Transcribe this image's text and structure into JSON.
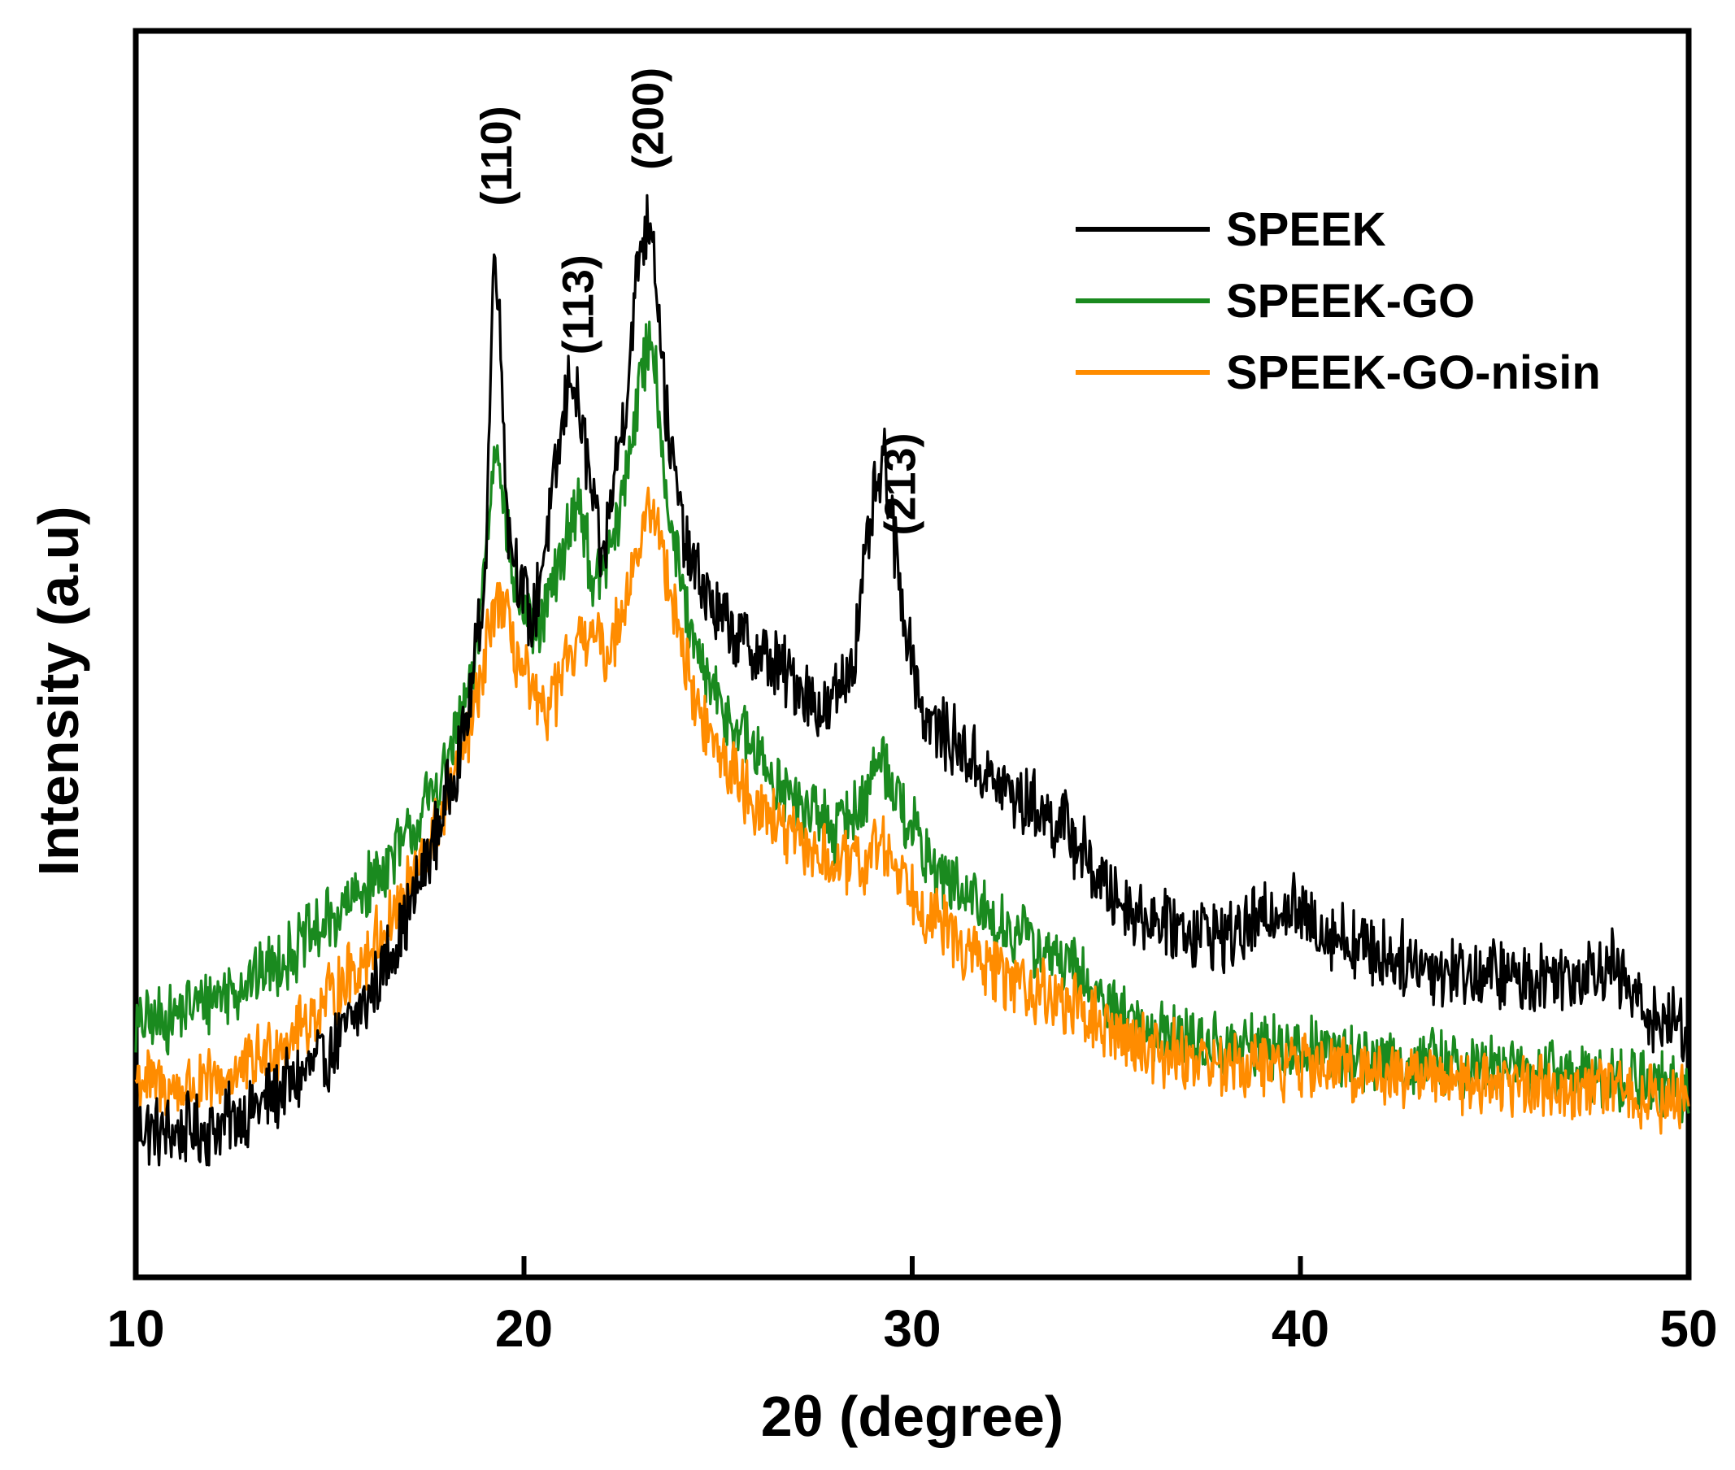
{
  "chart_data": {
    "type": "line",
    "title": "",
    "xlabel": "2θ (degree)",
    "ylabel": "Intensity (a.u)",
    "xlim": [
      10,
      50
    ],
    "ylim": [
      0,
      100
    ],
    "x_ticks": [
      "10",
      "20",
      "30",
      "40",
      "50"
    ],
    "legend_position": "top-right",
    "series": [
      {
        "name": "SPEEK",
        "color": "#000000",
        "noise": 2.6,
        "points": [
          [
            10,
            12
          ],
          [
            11,
            11.5
          ],
          [
            12,
            12
          ],
          [
            13,
            13.5
          ],
          [
            14,
            15.5
          ],
          [
            15,
            18
          ],
          [
            16,
            22.5
          ],
          [
            17,
            29
          ],
          [
            18,
            38
          ],
          [
            18.6,
            46
          ],
          [
            19,
            56
          ],
          [
            19.25,
            85
          ],
          [
            19.6,
            60
          ],
          [
            20.2,
            52
          ],
          [
            20.8,
            64
          ],
          [
            21.2,
            73
          ],
          [
            21.6,
            66
          ],
          [
            22,
            57
          ],
          [
            22.6,
            70
          ],
          [
            23,
            83
          ],
          [
            23.3,
            85
          ],
          [
            23.7,
            68
          ],
          [
            24.2,
            58
          ],
          [
            25,
            53
          ],
          [
            26,
            50
          ],
          [
            27,
            48
          ],
          [
            27.8,
            45
          ],
          [
            28.5,
            50
          ],
          [
            29,
            62
          ],
          [
            29.3,
            65
          ],
          [
            29.7,
            55
          ],
          [
            30.3,
            45
          ],
          [
            31,
            43
          ],
          [
            32,
            40
          ],
          [
            33,
            38
          ],
          [
            34,
            36
          ],
          [
            35,
            31
          ],
          [
            36,
            29
          ],
          [
            37,
            28
          ],
          [
            38,
            27.5
          ],
          [
            39,
            28.5
          ],
          [
            39.5,
            30
          ],
          [
            40.5,
            28
          ],
          [
            42,
            26
          ],
          [
            44,
            24.5
          ],
          [
            46,
            24
          ],
          [
            47,
            24.5
          ],
          [
            48,
            25
          ],
          [
            49,
            21
          ],
          [
            50,
            20
          ]
        ]
      },
      {
        "name": "SPEEK-GO",
        "color": "#1a8a1f",
        "noise": 2.4,
        "points": [
          [
            10,
            20
          ],
          [
            11,
            21
          ],
          [
            12,
            22.5
          ],
          [
            13,
            24
          ],
          [
            14,
            26
          ],
          [
            15,
            28.5
          ],
          [
            16,
            31.5
          ],
          [
            17,
            35
          ],
          [
            18,
            41
          ],
          [
            18.7,
            48
          ],
          [
            19.3,
            68
          ],
          [
            19.7,
            56
          ],
          [
            20.3,
            51
          ],
          [
            21,
            58
          ],
          [
            21.4,
            63
          ],
          [
            21.8,
            55
          ],
          [
            22.4,
            60
          ],
          [
            23,
            72
          ],
          [
            23.3,
            76
          ],
          [
            23.7,
            62
          ],
          [
            24.3,
            51
          ],
          [
            25,
            46
          ],
          [
            26,
            42
          ],
          [
            27,
            38
          ],
          [
            28,
            36
          ],
          [
            28.7,
            38
          ],
          [
            29.2,
            42
          ],
          [
            29.7,
            38
          ],
          [
            30.5,
            33
          ],
          [
            31.5,
            30
          ],
          [
            32.5,
            28
          ],
          [
            34,
            25
          ],
          [
            35,
            22
          ],
          [
            36,
            20
          ],
          [
            38,
            18.5
          ],
          [
            40,
            18.5
          ],
          [
            42,
            17.5
          ],
          [
            44,
            17
          ],
          [
            46,
            16.5
          ],
          [
            48,
            16
          ],
          [
            50,
            15
          ]
        ]
      },
      {
        "name": "SPEEK-GO-nisin",
        "color": "#ff8c00",
        "noise": 2.4,
        "points": [
          [
            10,
            16
          ],
          [
            11,
            15
          ],
          [
            12,
            15.5
          ],
          [
            13,
            17
          ],
          [
            14,
            19.5
          ],
          [
            15,
            22.5
          ],
          [
            16,
            26
          ],
          [
            17,
            31
          ],
          [
            18,
            38
          ],
          [
            18.8,
            46
          ],
          [
            19.3,
            55
          ],
          [
            19.8,
            50
          ],
          [
            20.4,
            45
          ],
          [
            21,
            48
          ],
          [
            21.6,
            52
          ],
          [
            22.2,
            50
          ],
          [
            22.8,
            57
          ],
          [
            23.3,
            62
          ],
          [
            23.8,
            55
          ],
          [
            24.4,
            46
          ],
          [
            25,
            42
          ],
          [
            26,
            38
          ],
          [
            27,
            35
          ],
          [
            28,
            33
          ],
          [
            28.7,
            33
          ],
          [
            29.2,
            35
          ],
          [
            29.8,
            32
          ],
          [
            30.5,
            29
          ],
          [
            31.5,
            26
          ],
          [
            32.5,
            24
          ],
          [
            34,
            22
          ],
          [
            35,
            20
          ],
          [
            36,
            18.5
          ],
          [
            38,
            17
          ],
          [
            40,
            17
          ],
          [
            42,
            16.5
          ],
          [
            44,
            16
          ],
          [
            46,
            15.5
          ],
          [
            48,
            15
          ],
          [
            50,
            14
          ]
        ]
      }
    ],
    "annotations": [
      {
        "text": "(110)",
        "x": 19.3
      },
      {
        "text": "(113)",
        "x": 21.4
      },
      {
        "text": "(200)",
        "x": 23.2
      },
      {
        "text": "(213)",
        "x": 29.7
      }
    ]
  }
}
